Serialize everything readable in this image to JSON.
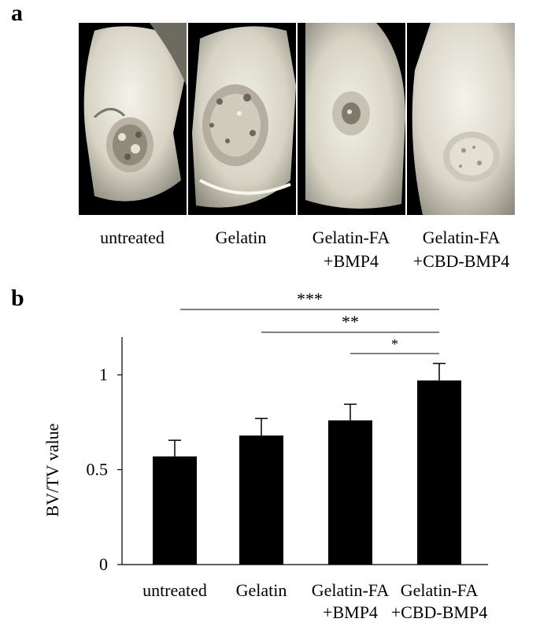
{
  "panel_a": {
    "letter": "a",
    "images": [
      {
        "label": "untreated",
        "label_line2": ""
      },
      {
        "label": "Gelatin",
        "label_line2": ""
      },
      {
        "label": "Gelatin-FA",
        "label_line2": "+BMP4"
      },
      {
        "label": "Gelatin-FA",
        "label_line2": "+CBD-BMP4"
      }
    ]
  },
  "panel_b": {
    "letter": "b",
    "significance": [
      {
        "from": 0,
        "to": 3,
        "label": "***"
      },
      {
        "from": 1,
        "to": 3,
        "label": "**"
      },
      {
        "from": 2,
        "to": 3,
        "label": "*"
      }
    ]
  },
  "chart_data": {
    "type": "bar",
    "categories": [
      [
        "untreated"
      ],
      [
        "Gelatin"
      ],
      [
        "Gelatin-FA",
        "+BMP4"
      ],
      [
        "Gelatin-FA",
        "+CBD-BMP4"
      ]
    ],
    "values": [
      0.57,
      0.68,
      0.76,
      0.97
    ],
    "errors": [
      0.085,
      0.09,
      0.085,
      0.09
    ],
    "title": "",
    "xlabel": "",
    "ylabel": "BV/TV value",
    "ylim": [
      0,
      1.2
    ],
    "yticks": [
      0,
      0.5,
      1
    ],
    "ytick_labels": [
      "0",
      "0.5",
      "1"
    ],
    "bar_color": "#000000",
    "grid": false
  }
}
